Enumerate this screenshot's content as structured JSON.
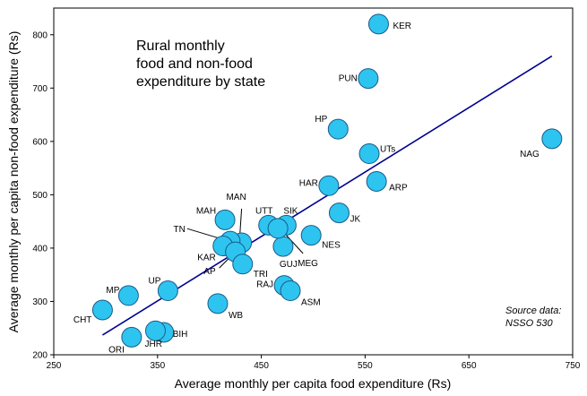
{
  "chart_data": {
    "type": "scatter",
    "title_lines": [
      "Rural monthly",
      "food and non-food",
      "expenditure by state"
    ],
    "xlabel": "Average monthly per capita food expenditure (Rs)",
    "ylabel": "Average monthly per capita non-food expenditure (Rs)",
    "xlim": [
      250,
      750
    ],
    "ylim": [
      200,
      850
    ],
    "xticks": [
      250,
      350,
      450,
      550,
      650,
      750
    ],
    "yticks": [
      200,
      300,
      400,
      500,
      600,
      700,
      800
    ],
    "grid": false,
    "note_lines": [
      "Source data:",
      "NSSO 530"
    ],
    "marker_color": "#2ec4f0",
    "marker_edge_color": "#1a5b8a",
    "trendline_color": "#000090",
    "trendline": {
      "x": [
        297,
        730
      ],
      "y": [
        237,
        760
      ]
    },
    "points": [
      {
        "label": "KER",
        "x": 563,
        "y": 820
      },
      {
        "label": "PUN",
        "x": 553,
        "y": 718
      },
      {
        "label": "HP",
        "x": 524,
        "y": 623
      },
      {
        "label": "UTs",
        "x": 554,
        "y": 577
      },
      {
        "label": "NAG",
        "x": 730,
        "y": 605
      },
      {
        "label": "HAR",
        "x": 515,
        "y": 517
      },
      {
        "label": "ARP",
        "x": 561,
        "y": 525
      },
      {
        "label": "JK",
        "x": 525,
        "y": 466
      },
      {
        "label": "MAH",
        "x": 415,
        "y": 453
      },
      {
        "label": "MAN",
        "x": 431,
        "y": 410
      },
      {
        "label": "TN",
        "x": 420,
        "y": 413
      },
      {
        "label": "KAR",
        "x": 413,
        "y": 404
      },
      {
        "label": "UTT",
        "x": 457,
        "y": 443
      },
      {
        "label": "SIK",
        "x": 474,
        "y": 443
      },
      {
        "label": "NES",
        "x": 498,
        "y": 424
      },
      {
        "label": "GUJ",
        "x": 471,
        "y": 403
      },
      {
        "label": "MEG",
        "x": 466,
        "y": 437
      },
      {
        "label": "AP",
        "x": 425,
        "y": 393
      },
      {
        "label": "TRI",
        "x": 432,
        "y": 370
      },
      {
        "label": "RAJ",
        "x": 472,
        "y": 330
      },
      {
        "label": "ASM",
        "x": 478,
        "y": 320
      },
      {
        "label": "UP",
        "x": 360,
        "y": 320
      },
      {
        "label": "MP",
        "x": 322,
        "y": 311
      },
      {
        "label": "WB",
        "x": 408,
        "y": 296
      },
      {
        "label": "CHT",
        "x": 297,
        "y": 284
      },
      {
        "label": "BIH",
        "x": 356,
        "y": 242
      },
      {
        "label": "JHR",
        "x": 348,
        "y": 245
      },
      {
        "label": "ORI",
        "x": 325,
        "y": 233
      }
    ]
  }
}
